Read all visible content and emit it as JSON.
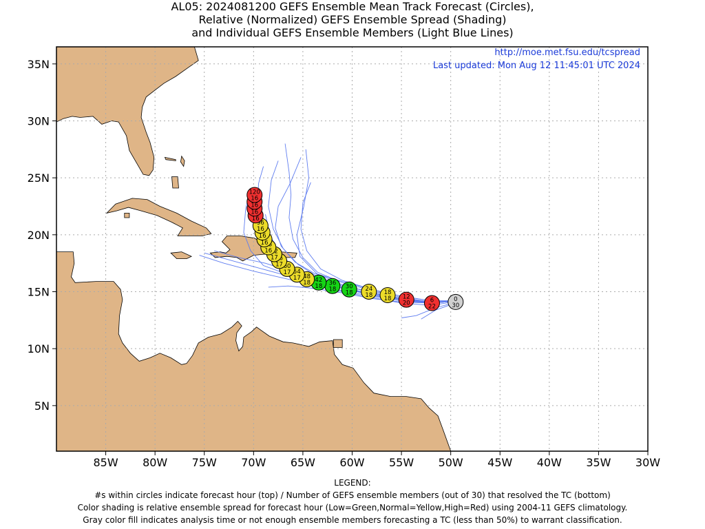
{
  "title": {
    "line1": "AL05: 2024081200 GEFS Ensemble Mean Track Forecast (Circles),",
    "line2": "Relative (Normalized) GEFS Ensemble Spread (Shading)",
    "line3": "and Individual GEFS Ensemble Members (Light Blue Lines)"
  },
  "header_links": {
    "url": "http://moe.met.fsu.edu/tcspread",
    "updated": "Last updated: Mon Aug 12 11:45:01 UTC 2024"
  },
  "legend": {
    "heading": "LEGEND:",
    "line1": "#s within circles indicate forecast hour (top) / Number of GEFS ensemble members (out of 30) that resolved the TC (bottom)",
    "line2": "Color shading is relative ensemble spread for forecast hour (Low=Green,Normal=Yellow,High=Red) using 2004-11 GEFS climatology.",
    "line3": "Gray color fill indicates analysis time or not enough ensemble members forecasting a TC (less than 50%) to warrant classification."
  },
  "colors": {
    "land": "#dfb587",
    "ocean": "#ffffff",
    "member_line": "#5e7cf0",
    "low": "#16d416",
    "normal": "#ecdc2a",
    "high": "#f03030",
    "gray": "#d0d0d0",
    "grid": "#aaaaaa"
  },
  "map": {
    "lon_range": [
      -90,
      -30
    ],
    "lat_range": [
      1,
      36.5
    ],
    "lon_ticks": [
      {
        "value": -85,
        "label": "85W"
      },
      {
        "value": -80,
        "label": "80W"
      },
      {
        "value": -75,
        "label": "75W"
      },
      {
        "value": -70,
        "label": "70W"
      },
      {
        "value": -65,
        "label": "65W"
      },
      {
        "value": -60,
        "label": "60W"
      },
      {
        "value": -55,
        "label": "55W"
      },
      {
        "value": -50,
        "label": "50W"
      },
      {
        "value": -45,
        "label": "45W"
      },
      {
        "value": -40,
        "label": "40W"
      },
      {
        "value": -35,
        "label": "35W"
      },
      {
        "value": -30,
        "label": "30W"
      }
    ],
    "lat_ticks": [
      {
        "value": 5,
        "label": "5N"
      },
      {
        "value": 10,
        "label": "10N"
      },
      {
        "value": 15,
        "label": "15N"
      },
      {
        "value": 20,
        "label": "20N"
      },
      {
        "value": 25,
        "label": "25N"
      },
      {
        "value": 30,
        "label": "30N"
      },
      {
        "value": 35,
        "label": "35N"
      }
    ]
  },
  "track": [
    {
      "hour": "0",
      "members": "30",
      "spread": "gray",
      "lon": -49.5,
      "lat": 14.1
    },
    {
      "hour": "6",
      "members": "22",
      "spread": "high",
      "lon": -51.9,
      "lat": 14.0
    },
    {
      "hour": "12",
      "members": "20",
      "spread": "high",
      "lon": -54.5,
      "lat": 14.3
    },
    {
      "hour": "18",
      "members": "18",
      "spread": "normal",
      "lon": -56.4,
      "lat": 14.7
    },
    {
      "hour": "24",
      "members": "18",
      "spread": "normal",
      "lon": -58.3,
      "lat": 15.0
    },
    {
      "hour": "30",
      "members": "18",
      "spread": "low",
      "lon": -60.3,
      "lat": 15.2
    },
    {
      "hour": "36",
      "members": "18",
      "spread": "low",
      "lon": -62.0,
      "lat": 15.5
    },
    {
      "hour": "42",
      "members": "18",
      "spread": "low",
      "lon": -63.4,
      "lat": 15.8
    },
    {
      "hour": "48",
      "members": "18",
      "spread": "normal",
      "lon": -64.6,
      "lat": 16.1
    },
    {
      "hour": "54",
      "members": "17",
      "spread": "normal",
      "lon": -65.6,
      "lat": 16.5
    },
    {
      "hour": "60",
      "members": "17",
      "spread": "normal",
      "lon": -66.6,
      "lat": 17.0
    },
    {
      "hour": "66",
      "members": "17",
      "spread": "normal",
      "lon": -67.4,
      "lat": 17.7
    },
    {
      "hour": "72",
      "members": "17",
      "spread": "normal",
      "lon": -67.9,
      "lat": 18.3
    },
    {
      "hour": "78",
      "members": "16",
      "spread": "normal",
      "lon": -68.5,
      "lat": 18.9
    },
    {
      "hour": "84",
      "members": "16",
      "spread": "normal",
      "lon": -68.9,
      "lat": 19.6
    },
    {
      "hour": "90",
      "members": "16",
      "spread": "normal",
      "lon": -69.1,
      "lat": 20.2
    },
    {
      "hour": "96",
      "members": "16",
      "spread": "normal",
      "lon": -69.3,
      "lat": 20.8
    },
    {
      "hour": "102",
      "members": "16",
      "spread": "high",
      "lon": -69.8,
      "lat": 21.7
    },
    {
      "hour": "108",
      "members": "16",
      "spread": "high",
      "lon": -69.9,
      "lat": 22.3
    },
    {
      "hour": "114",
      "members": "16",
      "spread": "high",
      "lon": -69.9,
      "lat": 22.9
    },
    {
      "hour": "120",
      "members": "16",
      "spread": "high",
      "lon": -69.9,
      "lat": 23.5
    }
  ],
  "members": [
    [
      [
        -48.9,
        14.2
      ],
      [
        -52,
        14.1
      ],
      [
        -55,
        14.3
      ],
      [
        -58,
        14.9
      ],
      [
        -61,
        15.6
      ],
      [
        -63.5,
        16.3
      ],
      [
        -65.5,
        17.4
      ],
      [
        -67,
        18.8
      ],
      [
        -68,
        20.5
      ],
      [
        -68.5,
        22.5
      ],
      [
        -68.2,
        24.8
      ],
      [
        -67.5,
        26.5
      ]
    ],
    [
      [
        -48.9,
        14.2
      ],
      [
        -52,
        14.0
      ],
      [
        -55,
        14.4
      ],
      [
        -58,
        15.0
      ],
      [
        -61,
        15.5
      ],
      [
        -64,
        16.2
      ],
      [
        -66.5,
        17.2
      ],
      [
        -68.3,
        18.5
      ],
      [
        -69.3,
        20.3
      ],
      [
        -69.6,
        22.4
      ],
      [
        -69.5,
        24.5
      ],
      [
        -69,
        26
      ]
    ],
    [
      [
        -48.9,
        14.2
      ],
      [
        -52,
        14.2
      ],
      [
        -55,
        14.6
      ],
      [
        -58,
        15.2
      ],
      [
        -61,
        15.9
      ],
      [
        -63.8,
        16.6
      ],
      [
        -65.8,
        17.6
      ],
      [
        -67.2,
        19
      ],
      [
        -67.8,
        20.6
      ],
      [
        -67.5,
        22.5
      ],
      [
        -66.3,
        24.5
      ],
      [
        -65.2,
        26.8
      ]
    ],
    [
      [
        -48.9,
        14.2
      ],
      [
        -52,
        14.0
      ],
      [
        -55,
        14.2
      ],
      [
        -58,
        14.7
      ],
      [
        -61,
        15.3
      ],
      [
        -63.5,
        15.9
      ],
      [
        -65.5,
        16.6
      ],
      [
        -67,
        17.8
      ],
      [
        -68.1,
        19.3
      ],
      [
        -69,
        21.4
      ],
      [
        -69.6,
        23.8
      ]
    ],
    [
      [
        -48.9,
        14.2
      ],
      [
        -52,
        13.8
      ],
      [
        -55,
        14.0
      ],
      [
        -58,
        14.5
      ],
      [
        -61,
        15.0
      ],
      [
        -64,
        15.6
      ],
      [
        -67,
        16.2
      ],
      [
        -70,
        16.8
      ],
      [
        -73,
        17.5
      ],
      [
        -75.5,
        18.2
      ]
    ],
    [
      [
        -48.9,
        14.2
      ],
      [
        -52,
        14.0
      ],
      [
        -55,
        14.2
      ],
      [
        -58,
        14.6
      ],
      [
        -61,
        15.1
      ],
      [
        -64,
        15.7
      ],
      [
        -67,
        16.5
      ],
      [
        -70,
        17.2
      ],
      [
        -72.5,
        17.8
      ],
      [
        -75,
        18.4
      ]
    ],
    [
      [
        -48.9,
        14.2
      ],
      [
        -52,
        14.1
      ],
      [
        -55,
        14.4
      ],
      [
        -58,
        14.8
      ],
      [
        -61,
        15.3
      ],
      [
        -63.8,
        16.0
      ],
      [
        -66.3,
        16.8
      ],
      [
        -68.8,
        17.5
      ],
      [
        -71.5,
        18.0
      ],
      [
        -74,
        18.6
      ]
    ],
    [
      [
        -48.9,
        14.2
      ],
      [
        -52,
        14.0
      ],
      [
        -55,
        14.3
      ],
      [
        -58,
        14.9
      ],
      [
        -61,
        15.6
      ],
      [
        -63.6,
        16.6
      ],
      [
        -65.3,
        18.1
      ],
      [
        -65.6,
        20
      ],
      [
        -64.9,
        22.5
      ],
      [
        -64.4,
        25
      ],
      [
        -64.7,
        27.5
      ]
    ],
    [
      [
        -48.9,
        14.2
      ],
      [
        -52,
        14.2
      ],
      [
        -55,
        14.6
      ],
      [
        -58,
        15.2
      ],
      [
        -61,
        16.0
      ],
      [
        -63.2,
        17.0
      ],
      [
        -64.6,
        18.6
      ],
      [
        -65.2,
        20.5
      ],
      [
        -65,
        22.8
      ],
      [
        -64.2,
        24.6
      ]
    ],
    [
      [
        -48.9,
        14.2
      ],
      [
        -52,
        14.0
      ],
      [
        -55,
        14.3
      ],
      [
        -58,
        14.8
      ],
      [
        -61,
        15.4
      ],
      [
        -64,
        16.0
      ],
      [
        -66.8,
        16.6
      ],
      [
        -69,
        17.3
      ],
      [
        -70.3,
        18.6
      ],
      [
        -71,
        20.2
      ],
      [
        -70.8,
        22.3
      ],
      [
        -70.3,
        24.1
      ]
    ],
    [
      [
        -48.9,
        14.2
      ],
      [
        -51.5,
        13.6
      ],
      [
        -53.5,
        12.9
      ],
      [
        -55,
        12.7
      ]
    ],
    [
      [
        -48.9,
        14.2
      ],
      [
        -51.5,
        13.4
      ],
      [
        -53,
        12.6
      ]
    ],
    [
      [
        -48.9,
        14.2
      ],
      [
        -52,
        14.1
      ],
      [
        -55,
        14.5
      ],
      [
        -58,
        15.1
      ],
      [
        -61,
        15.8
      ],
      [
        -63.5,
        16.7
      ],
      [
        -65,
        18
      ],
      [
        -66,
        19.6
      ],
      [
        -66.4,
        21.5
      ],
      [
        -66.2,
        23.5
      ],
      [
        -66.4,
        25.5
      ],
      [
        -66.8,
        28
      ]
    ],
    [
      [
        -48.9,
        14.2
      ],
      [
        -52,
        14.0
      ],
      [
        -55,
        14.1
      ],
      [
        -58,
        14.4
      ],
      [
        -61,
        14.9
      ],
      [
        -64,
        15.3
      ],
      [
        -66.5,
        15.5
      ],
      [
        -68.5,
        15.4
      ]
    ],
    [
      [
        -48.9,
        14.2
      ],
      [
        -52,
        14.1
      ],
      [
        -55,
        14.3
      ],
      [
        -58,
        14.7
      ],
      [
        -61,
        15.3
      ],
      [
        -63.8,
        16.1
      ],
      [
        -66,
        17.2
      ],
      [
        -67.6,
        18.6
      ],
      [
        -68.4,
        20.2
      ],
      [
        -68.8,
        21.8
      ]
    ]
  ],
  "land_shapes": {
    "north_america": [
      [
        -90,
        36.5
      ],
      [
        -76,
        36.5
      ],
      [
        -75.6,
        35.3
      ],
      [
        -76.6,
        34.7
      ],
      [
        -77.9,
        33.9
      ],
      [
        -79.1,
        33.3
      ],
      [
        -80.9,
        32.1
      ],
      [
        -81.3,
        31.2
      ],
      [
        -81.4,
        30.3
      ],
      [
        -80.9,
        29
      ],
      [
        -80.5,
        28.1
      ],
      [
        -80.1,
        26.8
      ],
      [
        -80.2,
        25.7
      ],
      [
        -80.6,
        25.2
      ],
      [
        -81.2,
        25.3
      ],
      [
        -81.8,
        26.2
      ],
      [
        -82.6,
        27.4
      ],
      [
        -82.9,
        28.7
      ],
      [
        -83.7,
        29.9
      ],
      [
        -84.4,
        30
      ],
      [
        -85.4,
        29.7
      ],
      [
        -86.3,
        30.4
      ],
      [
        -87.6,
        30.3
      ],
      [
        -88.4,
        30.4
      ],
      [
        -89.3,
        30.2
      ],
      [
        -90,
        29.9
      ]
    ],
    "central_south_america": [
      [
        -90,
        18.5
      ],
      [
        -88.3,
        18.5
      ],
      [
        -88.2,
        17.5
      ],
      [
        -88.5,
        16.3
      ],
      [
        -88.1,
        15.8
      ],
      [
        -86,
        15.9
      ],
      [
        -84.2,
        15.9
      ],
      [
        -83.5,
        15.2
      ],
      [
        -83.3,
        14.3
      ],
      [
        -83.6,
        12.9
      ],
      [
        -83.7,
        11.3
      ],
      [
        -83.3,
        10.5
      ],
      [
        -82.5,
        9.6
      ],
      [
        -81.6,
        8.9
      ],
      [
        -80.5,
        9.2
      ],
      [
        -79.5,
        9.6
      ],
      [
        -78.4,
        9.2
      ],
      [
        -77.3,
        8.6
      ],
      [
        -76.8,
        8.7
      ],
      [
        -76.2,
        9.4
      ],
      [
        -75.6,
        10.5
      ],
      [
        -74.6,
        11
      ],
      [
        -73.3,
        11.3
      ],
      [
        -72.2,
        11.9
      ],
      [
        -71.6,
        12.4
      ],
      [
        -71.2,
        12
      ],
      [
        -71.7,
        11.4
      ],
      [
        -71.8,
        10.7
      ],
      [
        -71.5,
        9.8
      ],
      [
        -71.1,
        10.2
      ],
      [
        -71,
        11
      ],
      [
        -70.2,
        11.5
      ],
      [
        -69.7,
        11.9
      ],
      [
        -68.4,
        11.1
      ],
      [
        -67,
        10.6
      ],
      [
        -66,
        10.5
      ],
      [
        -64.4,
        10.2
      ],
      [
        -63.3,
        10.6
      ],
      [
        -62,
        10.7
      ],
      [
        -61.8,
        9.5
      ],
      [
        -61,
        8.6
      ],
      [
        -59.9,
        8.3
      ],
      [
        -58.8,
        7
      ],
      [
        -57.8,
        6.1
      ],
      [
        -56.1,
        5.8
      ],
      [
        -54.5,
        5.8
      ],
      [
        -53,
        5.6
      ],
      [
        -52.2,
        4.8
      ],
      [
        -51.3,
        4.1
      ],
      [
        -50.7,
        2.7
      ],
      [
        -50,
        1
      ],
      [
        -90,
        1
      ]
    ],
    "cuba": [
      [
        -84.9,
        21.9
      ],
      [
        -84,
        22.7
      ],
      [
        -82.3,
        23.2
      ],
      [
        -80.8,
        23.1
      ],
      [
        -79.5,
        22.5
      ],
      [
        -77.8,
        21.9
      ],
      [
        -76.3,
        21.2
      ],
      [
        -74.8,
        20.6
      ],
      [
        -74.3,
        20.1
      ],
      [
        -75.2,
        19.9
      ],
      [
        -76.8,
        19.9
      ],
      [
        -77.7,
        19.9
      ],
      [
        -77.2,
        20.6
      ],
      [
        -78.3,
        21.1
      ],
      [
        -79.8,
        21.7
      ],
      [
        -81.4,
        22.1
      ],
      [
        -82.7,
        22.4
      ],
      [
        -83.9,
        22.1
      ]
    ],
    "hispaniola": [
      [
        -74.4,
        18.4
      ],
      [
        -73.4,
        18.5
      ],
      [
        -72.8,
        18.4
      ],
      [
        -72.4,
        18.7
      ],
      [
        -73.2,
        19.4
      ],
      [
        -72.7,
        19.9
      ],
      [
        -71.3,
        19.9
      ],
      [
        -69.9,
        19.7
      ],
      [
        -69.2,
        19.3
      ],
      [
        -68.4,
        18.6
      ],
      [
        -68.8,
        18.3
      ],
      [
        -70,
        18.2
      ],
      [
        -71.1,
        17.7
      ],
      [
        -71.7,
        18
      ],
      [
        -72.7,
        18.1
      ],
      [
        -73.9,
        18
      ]
    ],
    "jamaica": [
      [
        -78.4,
        18.4
      ],
      [
        -77.3,
        18.5
      ],
      [
        -76.3,
        18.1
      ],
      [
        -76.8,
        17.9
      ],
      [
        -77.8,
        17.9
      ]
    ],
    "puerto_rico": [
      [
        -67.3,
        18.5
      ],
      [
        -65.6,
        18.4
      ],
      [
        -65.8,
        18
      ],
      [
        -67.2,
        18
      ]
    ],
    "trinidad": [
      [
        -61.9,
        10.8
      ],
      [
        -61,
        10.8
      ],
      [
        -61,
        10.1
      ],
      [
        -61.9,
        10.1
      ]
    ],
    "andros": [
      [
        -78.3,
        25.1
      ],
      [
        -77.7,
        25.1
      ],
      [
        -77.6,
        24.1
      ],
      [
        -78.2,
        24.1
      ]
    ],
    "grand_bahama": [
      [
        -79,
        26.8
      ],
      [
        -77.9,
        26.6
      ],
      [
        -77.9,
        26.5
      ],
      [
        -78.9,
        26.6
      ]
    ],
    "abaco": [
      [
        -77.3,
        26.9
      ],
      [
        -77,
        26.5
      ],
      [
        -77.1,
        26.0
      ],
      [
        -77.4,
        26.4
      ]
    ],
    "isla_juventud": [
      [
        -83.1,
        21.9
      ],
      [
        -82.6,
        21.9
      ],
      [
        -82.6,
        21.5
      ],
      [
        -83.1,
        21.5
      ]
    ]
  }
}
